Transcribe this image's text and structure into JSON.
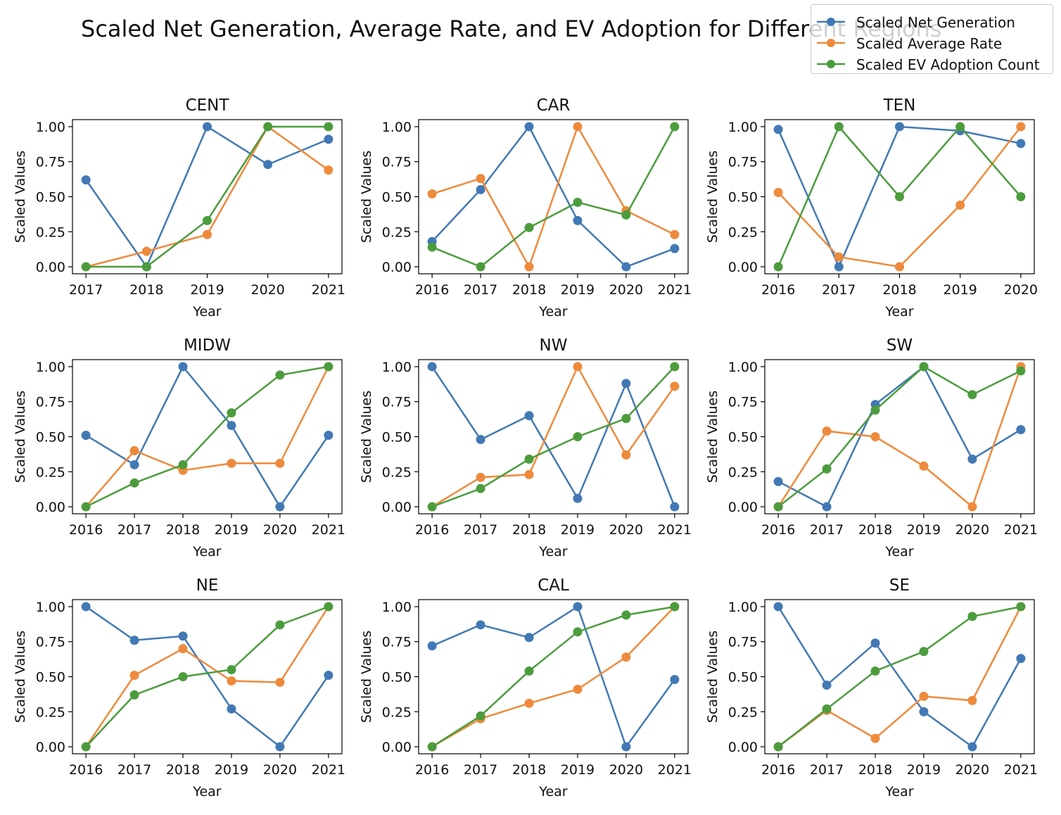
{
  "figure": {
    "suptitle": "Scaled Net Generation, Average Rate, and EV Adoption for Different Regions"
  },
  "colors": {
    "net_generation": "#4279b4",
    "average_rate": "#ee8a3c",
    "ev_adoption": "#4c9c3d"
  },
  "chart_data": [
    {
      "type": "line",
      "title": "CENT",
      "xlabel": "Year",
      "ylabel": "Scaled Values",
      "x": [
        2017,
        2018,
        2019,
        2020,
        2021
      ],
      "ylim": [
        0,
        1
      ],
      "yticks": [
        "0.00",
        "0.25",
        "0.50",
        "0.75",
        "1.00"
      ],
      "series": [
        {
          "name": "Scaled Net Generation",
          "values": [
            0.62,
            0.0,
            1.0,
            0.73,
            0.91
          ]
        },
        {
          "name": "Scaled Average Rate",
          "values": [
            0.0,
            0.11,
            0.23,
            1.0,
            0.69
          ]
        },
        {
          "name": "Scaled EV Adoption Count",
          "values": [
            0.0,
            0.0,
            0.33,
            1.0,
            1.0
          ]
        }
      ]
    },
    {
      "type": "line",
      "title": "CAR",
      "xlabel": "Year",
      "ylabel": "Scaled Values",
      "x": [
        2016,
        2017,
        2018,
        2019,
        2020,
        2021
      ],
      "ylim": [
        0,
        1
      ],
      "yticks": [
        "0.00",
        "0.25",
        "0.50",
        "0.75",
        "1.00"
      ],
      "series": [
        {
          "name": "Scaled Net Generation",
          "values": [
            0.18,
            0.55,
            1.0,
            0.33,
            0.0,
            0.13
          ]
        },
        {
          "name": "Scaled Average Rate",
          "values": [
            0.52,
            0.63,
            0.0,
            1.0,
            0.4,
            0.23
          ]
        },
        {
          "name": "Scaled EV Adoption Count",
          "values": [
            0.14,
            0.0,
            0.28,
            0.46,
            0.37,
            1.0
          ]
        }
      ]
    },
    {
      "type": "line",
      "title": "TEN",
      "xlabel": "Year",
      "ylabel": "Scaled Values",
      "x": [
        2016,
        2017,
        2018,
        2019,
        2020
      ],
      "ylim": [
        0,
        1
      ],
      "yticks": [
        "0.00",
        "0.25",
        "0.50",
        "0.75",
        "1.00"
      ],
      "series": [
        {
          "name": "Scaled Net Generation",
          "values": [
            0.98,
            0.0,
            1.0,
            0.97,
            0.88
          ]
        },
        {
          "name": "Scaled Average Rate",
          "values": [
            0.53,
            0.07,
            0.0,
            0.44,
            1.0
          ]
        },
        {
          "name": "Scaled EV Adoption Count",
          "values": [
            0.0,
            1.0,
            0.5,
            1.0,
            0.5
          ]
        }
      ]
    },
    {
      "type": "line",
      "title": "MIDW",
      "xlabel": "Year",
      "ylabel": "Scaled Values",
      "x": [
        2016,
        2017,
        2018,
        2019,
        2020,
        2021
      ],
      "ylim": [
        0,
        1
      ],
      "yticks": [
        "0.00",
        "0.25",
        "0.50",
        "0.75",
        "1.00"
      ],
      "series": [
        {
          "name": "Scaled Net Generation",
          "values": [
            0.51,
            0.3,
            1.0,
            0.58,
            0.0,
            0.51
          ]
        },
        {
          "name": "Scaled Average Rate",
          "values": [
            0.0,
            0.4,
            0.26,
            0.31,
            0.31,
            1.0
          ]
        },
        {
          "name": "Scaled EV Adoption Count",
          "values": [
            0.0,
            0.17,
            0.3,
            0.67,
            0.94,
            1.0
          ]
        }
      ]
    },
    {
      "type": "line",
      "title": "NW",
      "xlabel": "Year",
      "ylabel": "Scaled Values",
      "x": [
        2016,
        2017,
        2018,
        2019,
        2020,
        2021
      ],
      "ylim": [
        0,
        1
      ],
      "yticks": [
        "0.00",
        "0.25",
        "0.50",
        "0.75",
        "1.00"
      ],
      "series": [
        {
          "name": "Scaled Net Generation",
          "values": [
            1.0,
            0.48,
            0.65,
            0.06,
            0.88,
            0.0
          ]
        },
        {
          "name": "Scaled Average Rate",
          "values": [
            0.0,
            0.21,
            0.23,
            1.0,
            0.37,
            0.86
          ]
        },
        {
          "name": "Scaled EV Adoption Count",
          "values": [
            0.0,
            0.13,
            0.34,
            0.5,
            0.63,
            1.0
          ]
        }
      ]
    },
    {
      "type": "line",
      "title": "SW",
      "xlabel": "Year",
      "ylabel": "Scaled Values",
      "x": [
        2016,
        2017,
        2018,
        2019,
        2020,
        2021
      ],
      "ylim": [
        0,
        1
      ],
      "yticks": [
        "0.00",
        "0.25",
        "0.50",
        "0.75",
        "1.00"
      ],
      "series": [
        {
          "name": "Scaled Net Generation",
          "values": [
            0.18,
            0.0,
            0.73,
            1.0,
            0.34,
            0.55
          ]
        },
        {
          "name": "Scaled Average Rate",
          "values": [
            0.0,
            0.54,
            0.5,
            0.29,
            0.0,
            1.0
          ]
        },
        {
          "name": "Scaled EV Adoption Count",
          "values": [
            0.0,
            0.27,
            0.69,
            1.0,
            0.8,
            0.97
          ]
        }
      ]
    },
    {
      "type": "line",
      "title": "NE",
      "xlabel": "Year",
      "ylabel": "Scaled Values",
      "x": [
        2016,
        2017,
        2018,
        2019,
        2020,
        2021
      ],
      "ylim": [
        0,
        1
      ],
      "yticks": [
        "0.00",
        "0.25",
        "0.50",
        "0.75",
        "1.00"
      ],
      "series": [
        {
          "name": "Scaled Net Generation",
          "values": [
            1.0,
            0.76,
            0.79,
            0.27,
            0.0,
            0.51
          ]
        },
        {
          "name": "Scaled Average Rate",
          "values": [
            0.0,
            0.51,
            0.7,
            0.47,
            0.46,
            1.0
          ]
        },
        {
          "name": "Scaled EV Adoption Count",
          "values": [
            0.0,
            0.37,
            0.5,
            0.55,
            0.87,
            1.0
          ]
        }
      ]
    },
    {
      "type": "line",
      "title": "CAL",
      "xlabel": "Year",
      "ylabel": "Scaled Values",
      "x": [
        2016,
        2017,
        2018,
        2019,
        2020,
        2021
      ],
      "ylim": [
        0,
        1
      ],
      "yticks": [
        "0.00",
        "0.25",
        "0.50",
        "0.75",
        "1.00"
      ],
      "series": [
        {
          "name": "Scaled Net Generation",
          "values": [
            0.72,
            0.87,
            0.78,
            1.0,
            0.0,
            0.48
          ]
        },
        {
          "name": "Scaled Average Rate",
          "values": [
            0.0,
            0.2,
            0.31,
            0.41,
            0.64,
            1.0
          ]
        },
        {
          "name": "Scaled EV Adoption Count",
          "values": [
            0.0,
            0.22,
            0.54,
            0.82,
            0.94,
            1.0
          ]
        }
      ]
    },
    {
      "type": "line",
      "title": "SE",
      "xlabel": "Year",
      "ylabel": "Scaled Values",
      "x": [
        2016,
        2017,
        2018,
        2019,
        2020,
        2021
      ],
      "ylim": [
        0,
        1
      ],
      "yticks": [
        "0.00",
        "0.25",
        "0.50",
        "0.75",
        "1.00"
      ],
      "series": [
        {
          "name": "Scaled Net Generation",
          "values": [
            1.0,
            0.44,
            0.74,
            0.25,
            0.0,
            0.63
          ]
        },
        {
          "name": "Scaled Average Rate",
          "values": [
            0.0,
            0.26,
            0.06,
            0.36,
            0.33,
            1.0
          ]
        },
        {
          "name": "Scaled EV Adoption Count",
          "values": [
            0.0,
            0.27,
            0.54,
            0.68,
            0.93,
            1.0
          ]
        }
      ]
    }
  ],
  "legend": {
    "items": [
      {
        "label": "Scaled Net Generation",
        "color_key": "net_generation"
      },
      {
        "label": "Scaled Average Rate",
        "color_key": "average_rate"
      },
      {
        "label": "Scaled EV Adoption Count",
        "color_key": "ev_adoption"
      }
    ]
  }
}
